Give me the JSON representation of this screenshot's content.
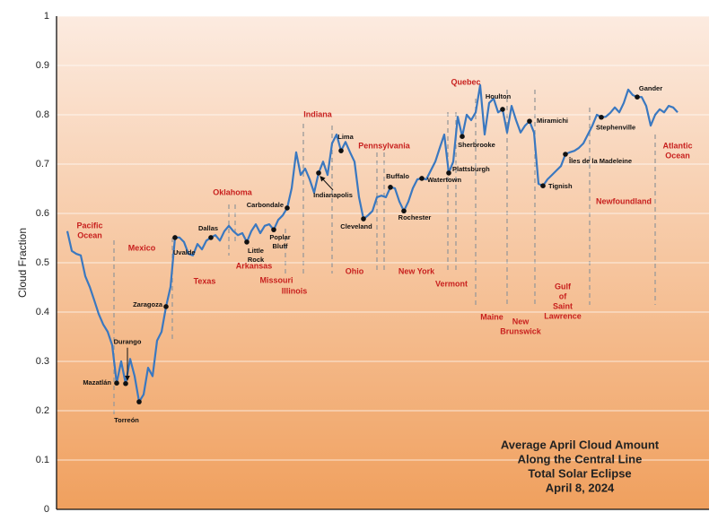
{
  "chart_data": {
    "type": "line",
    "title": [
      "Average April Cloud Amount",
      "Along the Central Line",
      "Total Solar Eclipse",
      "April 8, 2024"
    ],
    "y_label": "Cloud Fraction",
    "ylim": [
      0,
      1
    ],
    "yticks": [
      0,
      0.1,
      0.2,
      0.3,
      0.4,
      0.5,
      0.6,
      0.7,
      0.8,
      0.9,
      1
    ],
    "grid": true,
    "color": "#3a78c0",
    "values": [
      0.564,
      0.524,
      0.518,
      0.515,
      0.473,
      0.451,
      0.424,
      0.396,
      0.375,
      0.36,
      0.333,
      0.256,
      0.3,
      0.255,
      0.305,
      0.27,
      0.218,
      0.233,
      0.287,
      0.27,
      0.342,
      0.36,
      0.411,
      0.451,
      0.551,
      0.551,
      0.542,
      0.518,
      0.515,
      0.538,
      0.527,
      0.545,
      0.551,
      0.556,
      0.545,
      0.564,
      0.575,
      0.564,
      0.556,
      0.56,
      0.542,
      0.564,
      0.578,
      0.56,
      0.575,
      0.578,
      0.567,
      0.587,
      0.596,
      0.611,
      0.651,
      0.724,
      0.678,
      0.691,
      0.669,
      0.642,
      0.682,
      0.705,
      0.678,
      0.742,
      0.76,
      0.727,
      0.745,
      0.724,
      0.705,
      0.633,
      0.589,
      0.596,
      0.605,
      0.633,
      0.636,
      0.633,
      0.653,
      0.651,
      0.624,
      0.605,
      0.624,
      0.651,
      0.669,
      0.671,
      0.669,
      0.687,
      0.705,
      0.733,
      0.76,
      0.682,
      0.705,
      0.796,
      0.756,
      0.8,
      0.789,
      0.805,
      0.86,
      0.76,
      0.824,
      0.833,
      0.805,
      0.811,
      0.764,
      0.818,
      0.789,
      0.764,
      0.778,
      0.787,
      0.764,
      0.66,
      0.656,
      0.669,
      0.678,
      0.687,
      0.696,
      0.72,
      0.724,
      0.727,
      0.733,
      0.742,
      0.76,
      0.778,
      0.8,
      0.795,
      0.796,
      0.804,
      0.815,
      0.805,
      0.824,
      0.851,
      0.84,
      0.836,
      0.836,
      0.818,
      0.778,
      0.8,
      0.811,
      0.805,
      0.818,
      0.815,
      0.805
    ],
    "point_labels": [
      null,
      null,
      null,
      null,
      null,
      null,
      null,
      null,
      null,
      null,
      null,
      [
        "Mazatlán"
      ],
      null,
      [
        "Durango"
      ],
      null,
      null,
      [
        "Torreón"
      ],
      null,
      null,
      null,
      null,
      null,
      [
        "Zaragoza"
      ],
      null,
      [
        "Uvalde"
      ],
      null,
      null,
      null,
      null,
      null,
      null,
      null,
      [
        "Dallas"
      ],
      null,
      null,
      null,
      null,
      null,
      null,
      null,
      [
        "Little",
        "Rock"
      ],
      null,
      null,
      null,
      null,
      null,
      [
        "Poplar",
        "Bluff"
      ],
      null,
      null,
      [
        "Carbondale"
      ],
      null,
      null,
      null,
      null,
      null,
      null,
      [
        "Indianapolis"
      ],
      null,
      null,
      null,
      null,
      [
        "Lima"
      ],
      null,
      null,
      null,
      null,
      [
        "Cleveland"
      ],
      null,
      null,
      null,
      null,
      null,
      [
        "Buffalo"
      ],
      null,
      null,
      [
        "Rochester"
      ],
      null,
      null,
      null,
      [
        "Watertown"
      ],
      null,
      null,
      null,
      null,
      null,
      [
        "Plattsburgh"
      ],
      null,
      null,
      [
        "Sherbrooke"
      ],
      null,
      null,
      null,
      null,
      null,
      null,
      null,
      null,
      [
        "Houlton"
      ],
      null,
      null,
      null,
      null,
      null,
      [
        "Miramichi"
      ],
      null,
      null,
      [
        "Tignish"
      ],
      null,
      null,
      null,
      null,
      [
        "Îles de la Madeleine"
      ],
      null,
      null,
      null,
      null,
      null,
      null,
      null,
      [
        "Stephenville"
      ],
      null,
      null,
      null,
      null,
      null,
      null,
      null,
      [
        "Gander"
      ],
      null,
      null,
      null,
      null,
      null,
      null,
      null,
      null,
      null
    ],
    "regions": [
      [
        "Pacific",
        "Ocean"
      ],
      [
        "Mexico"
      ],
      [
        "Texas"
      ],
      [
        "Oklahoma"
      ],
      [
        "Arkansas"
      ],
      [
        "Missouri"
      ],
      [
        "Illinois"
      ],
      [
        "Indiana"
      ],
      [
        "Ohio"
      ],
      [
        "Pennsylvania"
      ],
      [
        "New York"
      ],
      [
        "Vermont"
      ],
      [
        "Quebec"
      ],
      [
        "Maine"
      ],
      [
        "New",
        "Brunswick"
      ],
      [
        "Gulf",
        "of",
        "Saint",
        "Lawrence"
      ],
      [
        "Newfoundland"
      ],
      [
        "Atlantic",
        "Ocean"
      ]
    ]
  }
}
